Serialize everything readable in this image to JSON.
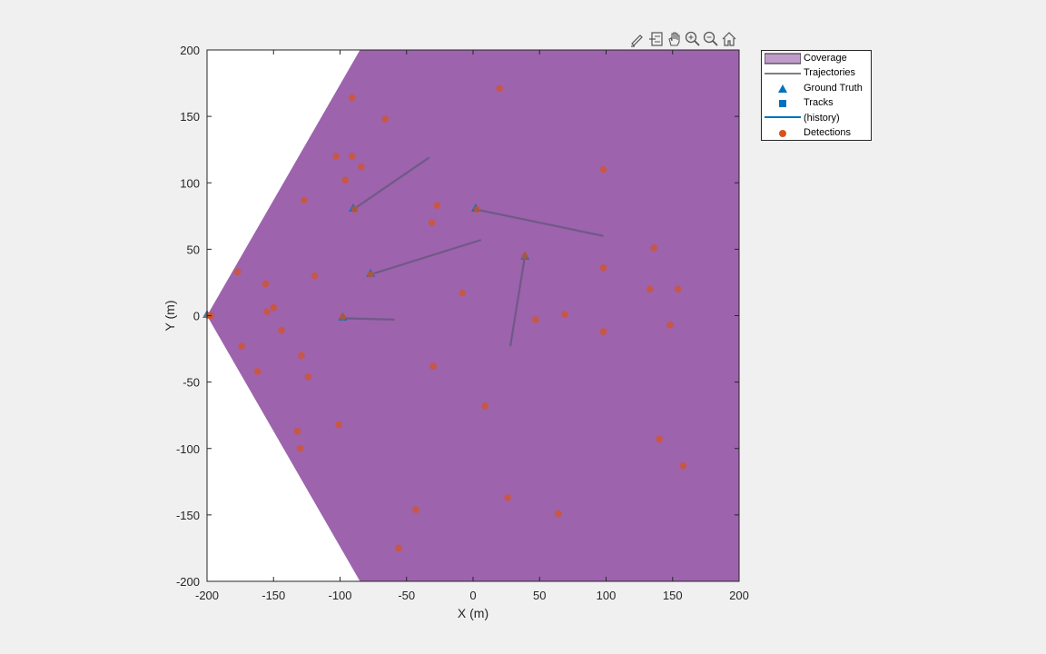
{
  "toolbar": {
    "icons": [
      "edit-icon",
      "data-tips-icon",
      "pan-icon",
      "zoom-in-icon",
      "zoom-out-icon",
      "home-icon"
    ]
  },
  "colors": {
    "figure_bg": "#f0f0f0",
    "coverage": "#9d63ad",
    "trajectory": "#6f5a86",
    "ground_truth": "#0072bd",
    "tracks": "#0072bd",
    "detections": "#d95319",
    "detections_on_coverage": "#c0494f"
  },
  "chart_data": {
    "type": "scatter",
    "xlabel": "X (m)",
    "ylabel": "Y (m)",
    "xlim": [
      -200,
      200
    ],
    "ylim": [
      -200,
      200
    ],
    "xticks": [
      -200,
      -150,
      -100,
      -50,
      0,
      50,
      100,
      150,
      200
    ],
    "yticks": [
      -200,
      -150,
      -100,
      -50,
      0,
      50,
      100,
      150,
      200
    ],
    "grid": false,
    "legend_position": "outside-top-right",
    "legend": [
      "Coverage",
      "Trajectories",
      "Ground Truth",
      "Tracks",
      "(history)",
      "Detections"
    ],
    "coverage": {
      "name": "Coverage",
      "polygon": [
        [
          -200,
          0
        ],
        [
          -85,
          200
        ],
        [
          200,
          200
        ],
        [
          200,
          -200
        ],
        [
          -85,
          -200
        ]
      ]
    },
    "trajectories": [
      {
        "x": [
          -90,
          -33
        ],
        "y": [
          80,
          119
        ]
      },
      {
        "x": [
          2,
          98
        ],
        "y": [
          80,
          60
        ]
      },
      {
        "x": [
          -77,
          6
        ],
        "y": [
          31,
          57
        ]
      },
      {
        "x": [
          -98,
          -59
        ],
        "y": [
          -2,
          -3
        ]
      },
      {
        "x": [
          39,
          28
        ],
        "y": [
          45,
          -23
        ]
      }
    ],
    "ground_truth": [
      {
        "x": -200,
        "y": 1
      },
      {
        "x": -90,
        "y": 81
      },
      {
        "x": 2,
        "y": 81
      },
      {
        "x": -77,
        "y": 32
      },
      {
        "x": -98,
        "y": -1
      },
      {
        "x": 39,
        "y": 45
      }
    ],
    "detections": [
      {
        "x": -199,
        "y": 0
      },
      {
        "x": -197,
        "y": 0
      },
      {
        "x": -91,
        "y": 164
      },
      {
        "x": -66,
        "y": 148
      },
      {
        "x": 20,
        "y": 171
      },
      {
        "x": -103,
        "y": 120
      },
      {
        "x": -91,
        "y": 120
      },
      {
        "x": -84,
        "y": 112
      },
      {
        "x": -96,
        "y": 102
      },
      {
        "x": -127,
        "y": 87
      },
      {
        "x": -89,
        "y": 80
      },
      {
        "x": -27,
        "y": 83
      },
      {
        "x": -31,
        "y": 70
      },
      {
        "x": 3,
        "y": 80
      },
      {
        "x": 98,
        "y": 110
      },
      {
        "x": -177,
        "y": 33
      },
      {
        "x": -156,
        "y": 24
      },
      {
        "x": -119,
        "y": 30
      },
      {
        "x": -77,
        "y": 31
      },
      {
        "x": -8,
        "y": 17
      },
      {
        "x": 39,
        "y": 45
      },
      {
        "x": 136,
        "y": 51
      },
      {
        "x": 98,
        "y": 36
      },
      {
        "x": 133,
        "y": 20
      },
      {
        "x": 154,
        "y": 20
      },
      {
        "x": -150,
        "y": 6
      },
      {
        "x": -155,
        "y": 3
      },
      {
        "x": -98,
        "y": -1
      },
      {
        "x": -144,
        "y": -11
      },
      {
        "x": 47,
        "y": -3
      },
      {
        "x": 69,
        "y": 1
      },
      {
        "x": 98,
        "y": -12
      },
      {
        "x": 148,
        "y": -7
      },
      {
        "x": -174,
        "y": -23
      },
      {
        "x": -129,
        "y": -30
      },
      {
        "x": -162,
        "y": -42
      },
      {
        "x": -124,
        "y": -46
      },
      {
        "x": -30,
        "y": -38
      },
      {
        "x": 9,
        "y": -68
      },
      {
        "x": -132,
        "y": -87
      },
      {
        "x": -101,
        "y": -82
      },
      {
        "x": -130,
        "y": -100
      },
      {
        "x": 140,
        "y": -93
      },
      {
        "x": 158,
        "y": -113
      },
      {
        "x": 26,
        "y": -137
      },
      {
        "x": -43,
        "y": -146
      },
      {
        "x": 64,
        "y": -149
      },
      {
        "x": -56,
        "y": -175
      }
    ]
  }
}
